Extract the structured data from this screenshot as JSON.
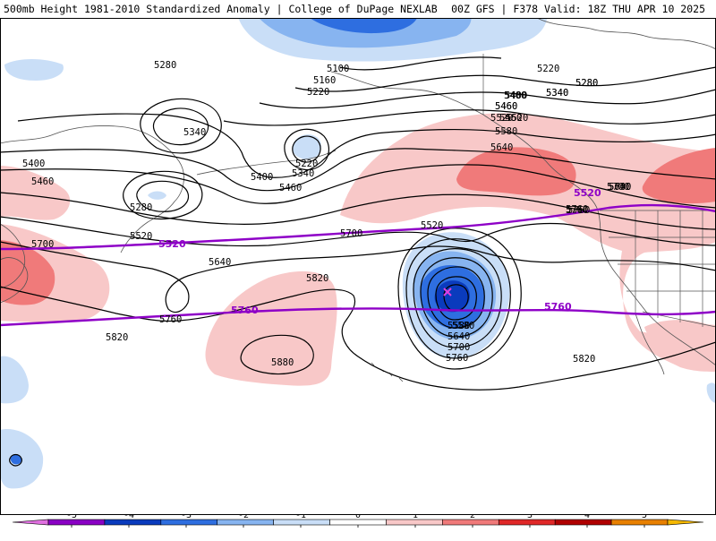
{
  "header": {
    "title_left": "500mb Height 1981-2010 Standardized Anomaly | College of DuPage NEXLAB",
    "title_right": "00Z GFS | F378 Valid: 18Z THU APR 10 2025"
  },
  "colors": {
    "contour": "#000000",
    "highlight_contour": "#8e00c7",
    "coast": "#555555"
  },
  "contour_labels": [
    "5100",
    "5160",
    "5220",
    "5280",
    "5340",
    "5400",
    "5460",
    "5520",
    "5580",
    "5640",
    "5700",
    "5760",
    "5820",
    "5880",
    "5220",
    "5280",
    "5340",
    "5400",
    "5460",
    "5520",
    "5700",
    "5640",
    "5760",
    "5820",
    "5460",
    "5580",
    "5640",
    "5700",
    "5760",
    "5820",
    "5220",
    "5280",
    "5340",
    "5400",
    "5460",
    "5520",
    "5580",
    "5640",
    "5700",
    "5760",
    "5280",
    "5340",
    "5400",
    "5460",
    "5700",
    "5520",
    "5760"
  ],
  "highlight_labels": [
    "5520",
    "5760",
    "5520",
    "5760"
  ],
  "colorbar": {
    "ticks": [
      "-5",
      "-4",
      "-3",
      "-2",
      "-1",
      "0",
      "1",
      "2",
      "3",
      "4",
      "5"
    ],
    "colors": [
      "#e070e0",
      "#8a00c4",
      "#0a3bbd",
      "#2e6ee0",
      "#87b4f0",
      "#c9def7",
      "#ffffff",
      "#f8c8c8",
      "#f07a7a",
      "#e02828",
      "#b00000",
      "#e88000",
      "#f5b800"
    ]
  }
}
